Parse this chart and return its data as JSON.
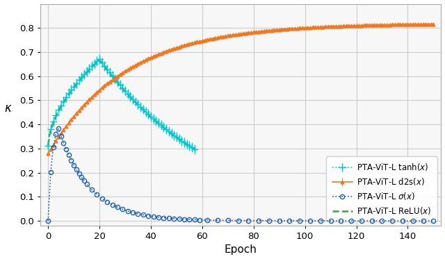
{
  "title": "",
  "xlabel": "Epoch",
  "ylabel": "$\\kappa$",
  "xlim": [
    -3,
    153
  ],
  "ylim": [
    -0.02,
    0.9
  ],
  "xticks": [
    0,
    20,
    40,
    60,
    80,
    100,
    120,
    140
  ],
  "yticks": [
    0.0,
    0.1,
    0.2,
    0.3,
    0.4,
    0.5,
    0.6,
    0.7,
    0.8
  ],
  "grid_color": "#c8c8c8",
  "background_color": "#f7f7f7",
  "series": {
    "d2s": {
      "label": "PTA-ViT-L d2s$(x)$",
      "color": "#f07820",
      "linestyle": "-",
      "marker": "^",
      "markersize": 3.5,
      "linewidth": 1.2
    },
    "sigma": {
      "label": "PTA-ViT-L $\\sigma(x)$",
      "color": "#2060b0",
      "linestyle": ":",
      "marker": "o",
      "markersize": 4.5,
      "linewidth": 1.2
    },
    "tanh": {
      "label": "PTA-ViT-L $\\tanh(x)$",
      "color": "#00c8d8",
      "linestyle": ":",
      "marker": "+",
      "markersize": 7,
      "linewidth": 1.2
    },
    "relu": {
      "label": "PTA-ViT-L ReLU$(x)$",
      "color": "#40a040",
      "linestyle": "--",
      "marker": "",
      "markersize": 0,
      "linewidth": 1.8
    }
  }
}
